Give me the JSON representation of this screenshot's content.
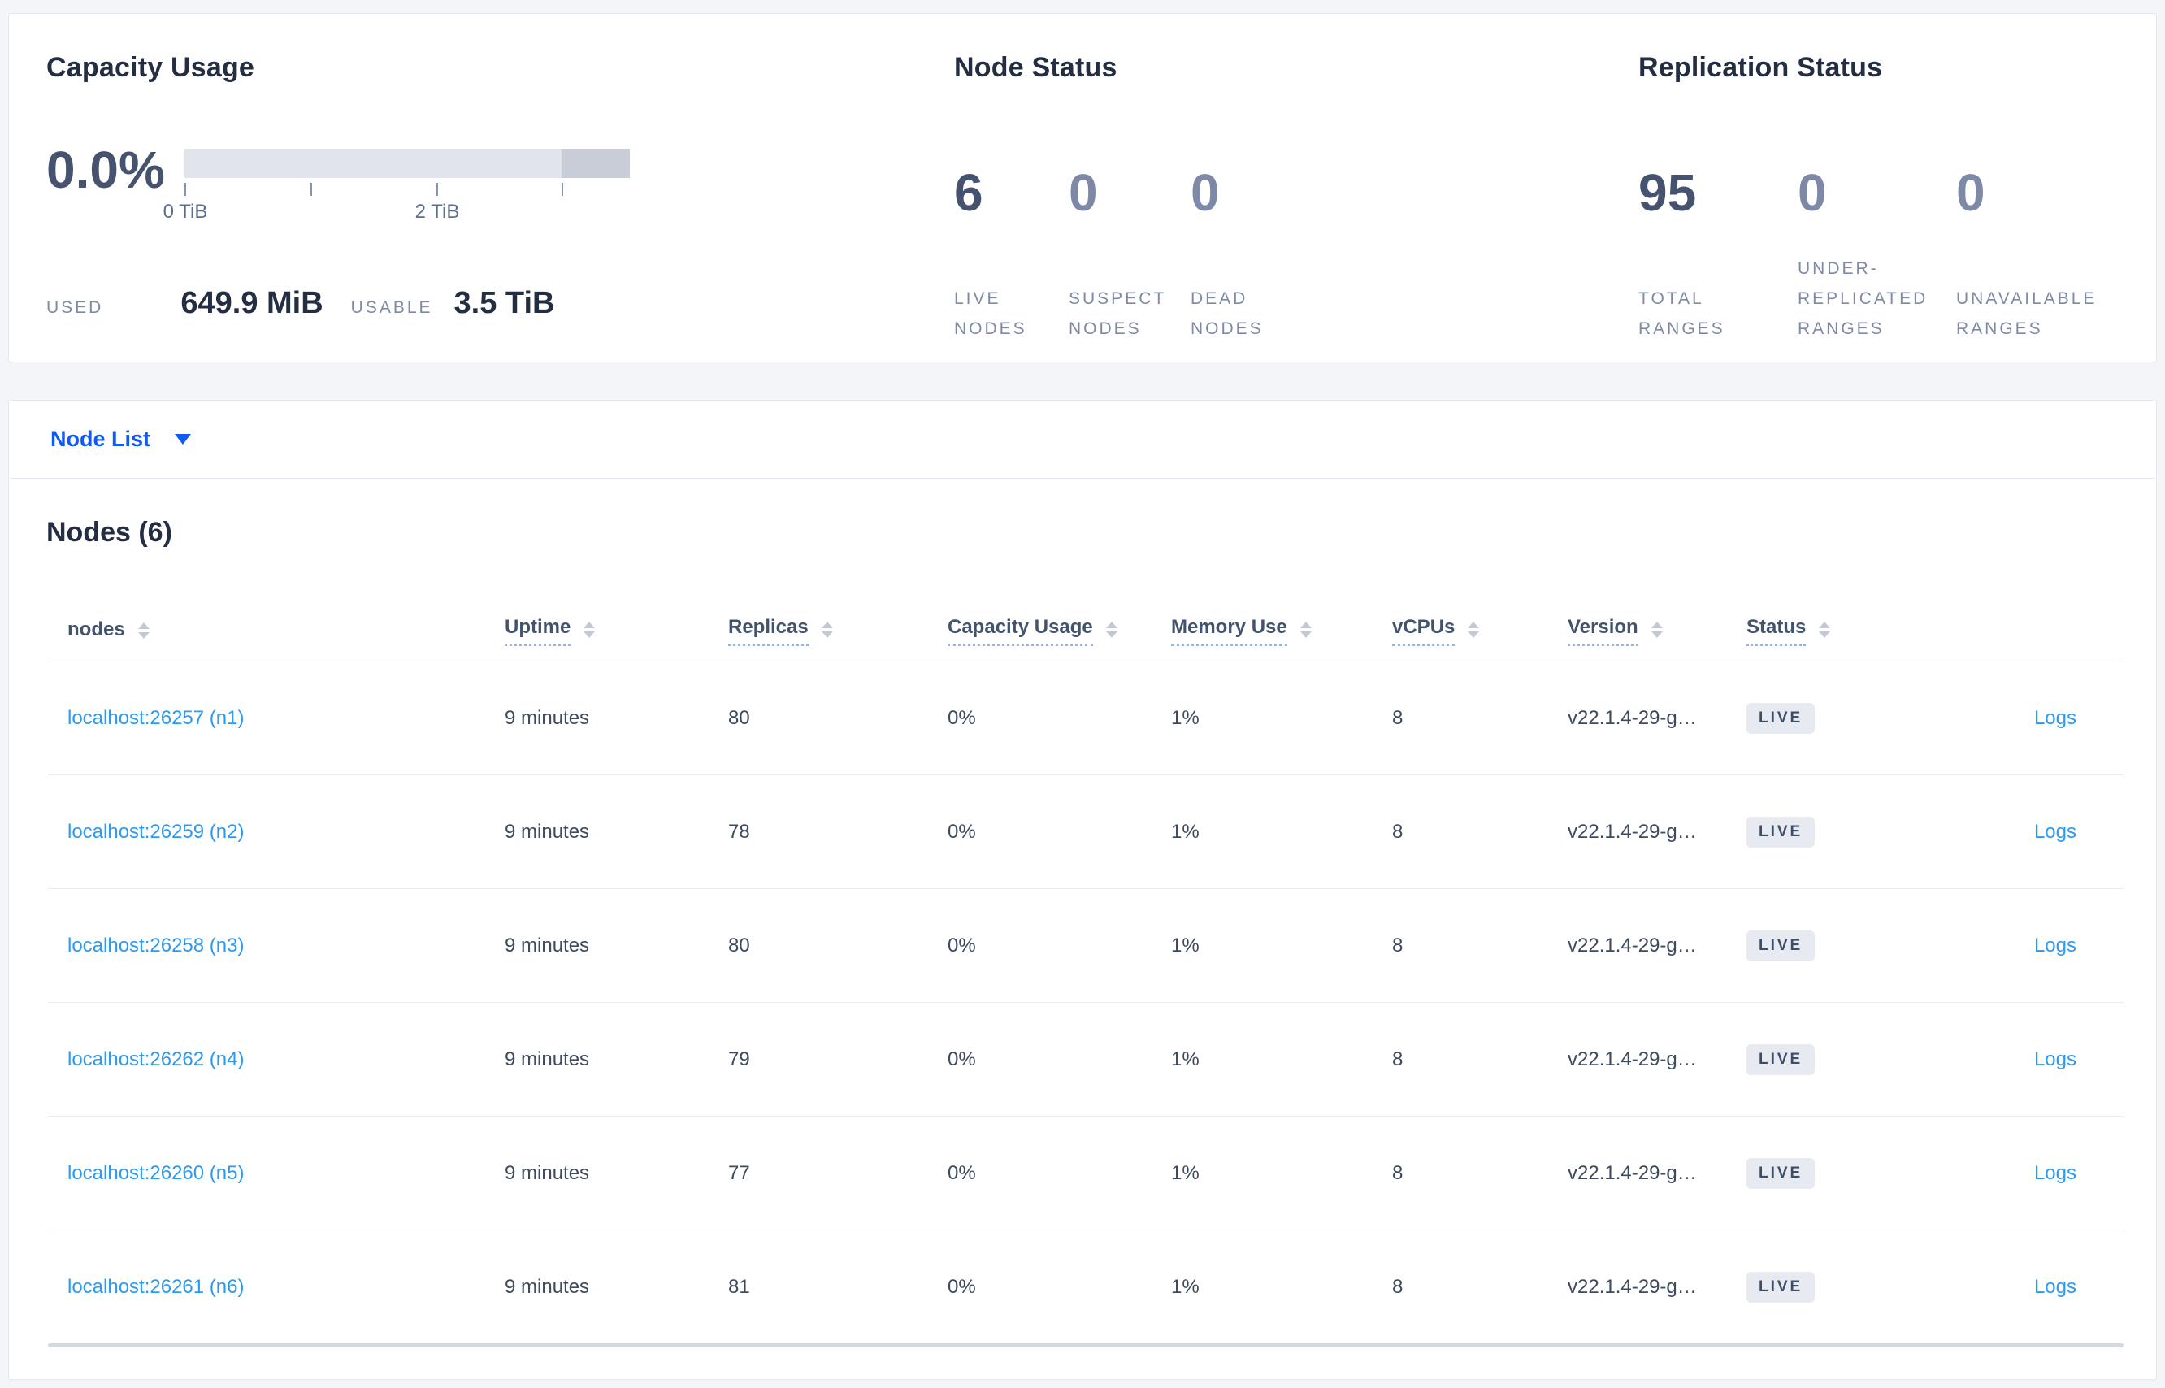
{
  "summary": {
    "capacity": {
      "title": "Capacity Usage",
      "percent": "0.0%",
      "axis_ticks": [
        "0 TiB",
        "2 TiB"
      ],
      "used_label": "USED",
      "used_value": "649.9 MiB",
      "usable_label": "USABLE",
      "usable_value": "3.5 TiB"
    },
    "node_status": {
      "title": "Node Status",
      "stats": [
        {
          "value": "6",
          "label": "LIVE NODES"
        },
        {
          "value": "0",
          "label": "SUSPECT NODES"
        },
        {
          "value": "0",
          "label": "DEAD NODES"
        }
      ]
    },
    "replication_status": {
      "title": "Replication Status",
      "stats": [
        {
          "value": "95",
          "label": "TOTAL RANGES"
        },
        {
          "value": "0",
          "label": "UNDER-REPLICATED RANGES"
        },
        {
          "value": "0",
          "label": "UNAVAILABLE RANGES"
        }
      ]
    }
  },
  "view_selector": {
    "label": "Node List"
  },
  "table": {
    "title": "Nodes (6)",
    "columns": [
      "nodes",
      "Uptime",
      "Replicas",
      "Capacity Usage",
      "Memory Use",
      "vCPUs",
      "Version",
      "Status"
    ],
    "rows": [
      {
        "node": "localhost:26257 (n1)",
        "uptime": "9 minutes",
        "replicas": "80",
        "capacity": "0%",
        "memory": "1%",
        "vcpus": "8",
        "version": "v22.1.4-29-g…",
        "status": "LIVE",
        "logs": "Logs"
      },
      {
        "node": "localhost:26259 (n2)",
        "uptime": "9 minutes",
        "replicas": "78",
        "capacity": "0%",
        "memory": "1%",
        "vcpus": "8",
        "version": "v22.1.4-29-g…",
        "status": "LIVE",
        "logs": "Logs"
      },
      {
        "node": "localhost:26258 (n3)",
        "uptime": "9 minutes",
        "replicas": "80",
        "capacity": "0%",
        "memory": "1%",
        "vcpus": "8",
        "version": "v22.1.4-29-g…",
        "status": "LIVE",
        "logs": "Logs"
      },
      {
        "node": "localhost:26262 (n4)",
        "uptime": "9 minutes",
        "replicas": "79",
        "capacity": "0%",
        "memory": "1%",
        "vcpus": "8",
        "version": "v22.1.4-29-g…",
        "status": "LIVE",
        "logs": "Logs"
      },
      {
        "node": "localhost:26260 (n5)",
        "uptime": "9 minutes",
        "replicas": "77",
        "capacity": "0%",
        "memory": "1%",
        "vcpus": "8",
        "version": "v22.1.4-29-g…",
        "status": "LIVE",
        "logs": "Logs"
      },
      {
        "node": "localhost:26261 (n6)",
        "uptime": "9 minutes",
        "replicas": "81",
        "capacity": "0%",
        "memory": "1%",
        "vcpus": "8",
        "version": "v22.1.4-29-g…",
        "status": "LIVE",
        "logs": "Logs"
      }
    ]
  },
  "colors": {
    "page_background": "#f3f5f9",
    "card_background": "#ffffff",
    "selector_link_blue": "#1159f2",
    "table_link_blue": "#2b9af3",
    "heading_dark": "#242e42",
    "stat_emphasis": "#46536e",
    "stat_muted": "#7d89a6",
    "label_muted": "#7e8aa5",
    "badge_background": "#e7eaf1",
    "badge_text": "#3e4e66",
    "capacity_bar_light": "#e2e4eb",
    "capacity_bar_dark": "#c9cdd8"
  }
}
